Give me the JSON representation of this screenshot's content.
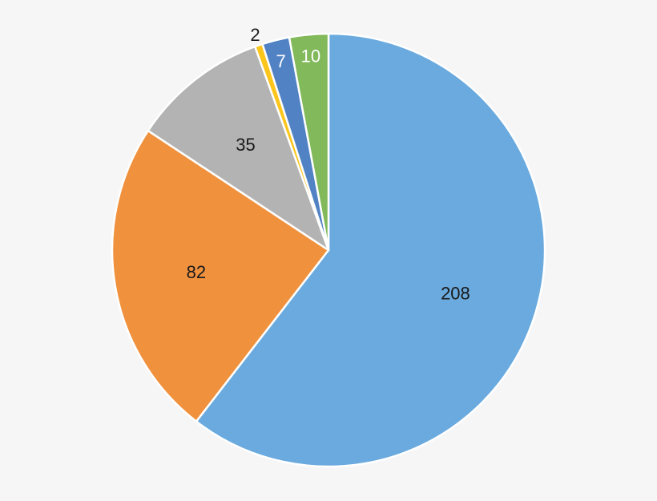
{
  "chart_data": {
    "type": "pie",
    "title": "",
    "categories": [
      "",
      "",
      "",
      "",
      "",
      ""
    ],
    "values": [
      208,
      82,
      35,
      2,
      7,
      10
    ],
    "labels": [
      "208",
      "82",
      "35",
      "2",
      "7",
      "10"
    ],
    "colors": [
      "#6aaade",
      "#f0913e",
      "#b3b3b3",
      "#fcc51c",
      "#5082c4",
      "#82b95a"
    ],
    "label_colors": [
      "#1a1a1a",
      "#1a1a1a",
      "#1a1a1a",
      "#1a1a1a",
      "#ffffff",
      "#ffffff"
    ],
    "start_angle_deg": 0,
    "direction": "clockwise",
    "background": "#f6f6f6",
    "legend": "none"
  }
}
